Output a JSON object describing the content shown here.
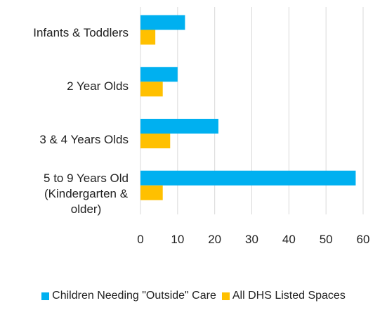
{
  "chart_data": {
    "type": "bar",
    "orientation": "horizontal",
    "categories": [
      "Infants & Toddlers",
      "2 Year Olds",
      "3 & 4 Years Olds",
      "5 to 9 Years Old\n(Kindergarten &\nolder)"
    ],
    "series": [
      {
        "name": "Children Needing \"Outside\" Care",
        "color": "#00B0F0",
        "values": [
          12,
          10,
          21,
          58
        ]
      },
      {
        "name": "All DHS Listed Spaces",
        "color": "#FFC000",
        "values": [
          4,
          6,
          8,
          6
        ]
      }
    ],
    "xlim": [
      0,
      60
    ],
    "xticks": [
      "0",
      "10",
      "20",
      "30",
      "40",
      "50",
      "60"
    ],
    "grid": "vertical",
    "legend_position": "bottom"
  }
}
